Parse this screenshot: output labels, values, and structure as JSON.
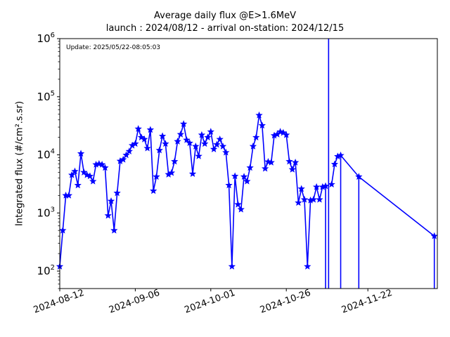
{
  "chart_data": {
    "type": "line",
    "title": "Average daily flux @E>1.6MeV",
    "subtitle": "launch : 2024/08/12 - arrival on-station: 2024/12/15",
    "annotation": "Update: 2025/05/22-08:05:03",
    "xlabel": "",
    "ylabel": "Integrated flux (#/cm².s.sr)",
    "yscale": "log",
    "ylim": [
      50,
      1000000
    ],
    "xlim": [
      "2024-08-12",
      "2024-12-15"
    ],
    "grid": false,
    "legend": "none",
    "color": "#0000ff",
    "marker": "star",
    "x_tick_labels": [
      "2024-08-12",
      "2024-09-06",
      "2024-10-01",
      "2024-10-26",
      "2024-11-22"
    ],
    "y_tick_labels": [
      {
        "value": 100,
        "base": "10",
        "exp": "2"
      },
      {
        "value": 1000,
        "base": "10",
        "exp": "3"
      },
      {
        "value": 10000,
        "base": "10",
        "exp": "4"
      },
      {
        "value": 100000,
        "base": "10",
        "exp": "5"
      },
      {
        "value": 1000000,
        "base": "10",
        "exp": "6"
      }
    ],
    "series": [
      {
        "points": [
          [
            "2024-08-12",
            120
          ],
          [
            "2024-08-13",
            500
          ],
          [
            "2024-08-14",
            2000
          ],
          [
            "2024-08-15",
            2000
          ],
          [
            "2024-08-16",
            4500
          ],
          [
            "2024-08-17",
            5200
          ],
          [
            "2024-08-18",
            3000
          ],
          [
            "2024-08-19",
            10500
          ],
          [
            "2024-08-20",
            5000
          ],
          [
            "2024-08-21",
            4500
          ],
          [
            "2024-08-22",
            4300
          ],
          [
            "2024-08-23",
            3500
          ],
          [
            "2024-08-24",
            6800
          ],
          [
            "2024-08-25",
            7000
          ],
          [
            "2024-08-26",
            6800
          ],
          [
            "2024-08-27",
            6000
          ],
          [
            "2024-08-28",
            900
          ],
          [
            "2024-08-29",
            1600
          ],
          [
            "2024-08-30",
            500
          ],
          [
            "2024-08-31",
            2200
          ],
          [
            "2024-09-01",
            7800
          ],
          [
            "2024-09-02",
            8300
          ],
          [
            "2024-09-03",
            9900
          ],
          [
            "2024-09-04",
            11500
          ],
          [
            "2024-09-05",
            14500
          ],
          [
            "2024-09-06",
            15500
          ],
          [
            "2024-09-07",
            28000
          ],
          [
            "2024-09-08",
            20000
          ],
          [
            "2024-09-09",
            18500
          ],
          [
            "2024-09-10",
            13000
          ],
          [
            "2024-09-11",
            27000
          ],
          [
            "2024-09-12",
            2400
          ],
          [
            "2024-09-13",
            4200
          ],
          [
            "2024-09-14",
            12000
          ],
          [
            "2024-09-15",
            21000
          ],
          [
            "2024-09-16",
            15500
          ],
          [
            "2024-09-17",
            4600
          ],
          [
            "2024-09-18",
            4900
          ],
          [
            "2024-09-19",
            7700
          ],
          [
            "2024-09-20",
            17000
          ],
          [
            "2024-09-21",
            22500
          ],
          [
            "2024-09-22",
            34000
          ],
          [
            "2024-09-23",
            18000
          ],
          [
            "2024-09-24",
            16000
          ],
          [
            "2024-09-25",
            4700
          ],
          [
            "2024-09-26",
            14000
          ],
          [
            "2024-09-27",
            9500
          ],
          [
            "2024-09-28",
            22000
          ],
          [
            "2024-09-29",
            15500
          ],
          [
            "2024-09-30",
            20000
          ],
          [
            "2024-10-01",
            25000
          ],
          [
            "2024-10-02",
            12500
          ],
          [
            "2024-10-03",
            15000
          ],
          [
            "2024-10-04",
            18500
          ],
          [
            "2024-10-05",
            14000
          ],
          [
            "2024-10-06",
            11000
          ],
          [
            "2024-10-07",
            3000
          ],
          [
            "2024-10-08",
            120
          ],
          [
            "2024-10-09",
            4300
          ],
          [
            "2024-10-10",
            1400
          ],
          [
            "2024-10-11",
            1150
          ],
          [
            "2024-10-12",
            4200
          ],
          [
            "2024-10-13",
            3500
          ],
          [
            "2024-10-14",
            6000
          ],
          [
            "2024-10-15",
            14000
          ],
          [
            "2024-10-16",
            20000
          ],
          [
            "2024-10-17",
            48000
          ],
          [
            "2024-10-18",
            32000
          ],
          [
            "2024-10-19",
            5800
          ],
          [
            "2024-10-20",
            7600
          ],
          [
            "2024-10-21",
            7400
          ],
          [
            "2024-10-22",
            21500
          ],
          [
            "2024-10-23",
            22500
          ],
          [
            "2024-10-24",
            25000
          ],
          [
            "2024-10-25",
            24000
          ],
          [
            "2024-10-26",
            22000
          ],
          [
            "2024-10-27",
            7700
          ],
          [
            "2024-10-28",
            5600
          ],
          [
            "2024-10-29",
            7400
          ],
          [
            "2024-10-30",
            1500
          ],
          [
            "2024-10-31",
            2600
          ],
          [
            "2024-11-01",
            1700
          ],
          [
            "2024-11-02",
            120
          ],
          [
            "2024-11-03",
            1650
          ],
          [
            "2024-11-04",
            1700
          ],
          [
            "2024-11-05",
            2800
          ],
          [
            "2024-11-06",
            1700
          ],
          [
            "2024-11-07",
            2800
          ],
          [
            "2024-11-08",
            2900
          ],
          [
            "2024-11-09",
            null
          ],
          [
            "2024-11-10",
            3100
          ],
          [
            "2024-11-11",
            6900
          ],
          [
            "2024-11-12",
            9400
          ],
          [
            "2024-11-13",
            9800
          ],
          [
            "2024-11-19",
            4200
          ],
          [
            "2024-12-14",
            400
          ]
        ],
        "drops_below_axis": [
          "2024-11-08",
          "2024-11-09",
          "2024-11-13",
          "2024-11-19",
          "2024-12-14"
        ]
      }
    ]
  }
}
